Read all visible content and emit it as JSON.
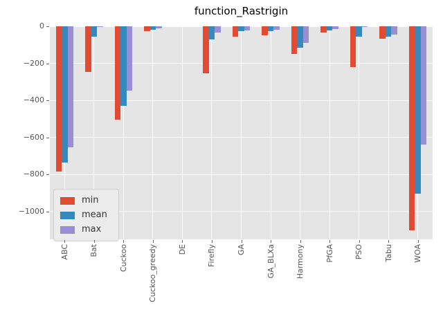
{
  "chart_data": {
    "type": "bar",
    "title": "function_Rastrigin",
    "categories": [
      "ABC",
      "Bat",
      "Cuckoo",
      "Cuckoo_greedy",
      "DE",
      "Firefly",
      "GA",
      "GA_BLXa",
      "Harmony",
      "PfGA",
      "PSO",
      "Tabu",
      "WOA"
    ],
    "series": [
      {
        "name": "min",
        "color": "#e24a33",
        "values": [
          -785,
          -247,
          -503,
          -25,
          0,
          -255,
          -55,
          -47,
          -151,
          -33,
          -222,
          -67,
          -1100
        ]
      },
      {
        "name": "mean",
        "color": "#348abd",
        "values": [
          -735,
          -57,
          -430,
          -17,
          0,
          -71,
          -28,
          -28,
          -115,
          -24,
          -55,
          -55,
          -905
        ]
      },
      {
        "name": "max",
        "color": "#988ed5",
        "values": [
          -655,
          -2,
          -348,
          -11,
          0,
          -33,
          -23,
          -20,
          -88,
          -16,
          -2,
          -44,
          -640
        ]
      }
    ],
    "xlabel": "",
    "ylabel": "",
    "ylim": [
      -1150,
      0
    ],
    "yticks": [
      0,
      -200,
      -400,
      -600,
      -800,
      -1000
    ],
    "ytick_labels": [
      "0",
      "−200",
      "−400",
      "−600",
      "−800",
      "−1000"
    ],
    "grid": true,
    "legend_position": "lower left",
    "style": {
      "axes_background": "#e5e5e5",
      "figure_background": "#ffffff",
      "grid_color": "#ffffff",
      "tick_label_color": "#555555",
      "title_color": "#000000"
    }
  }
}
